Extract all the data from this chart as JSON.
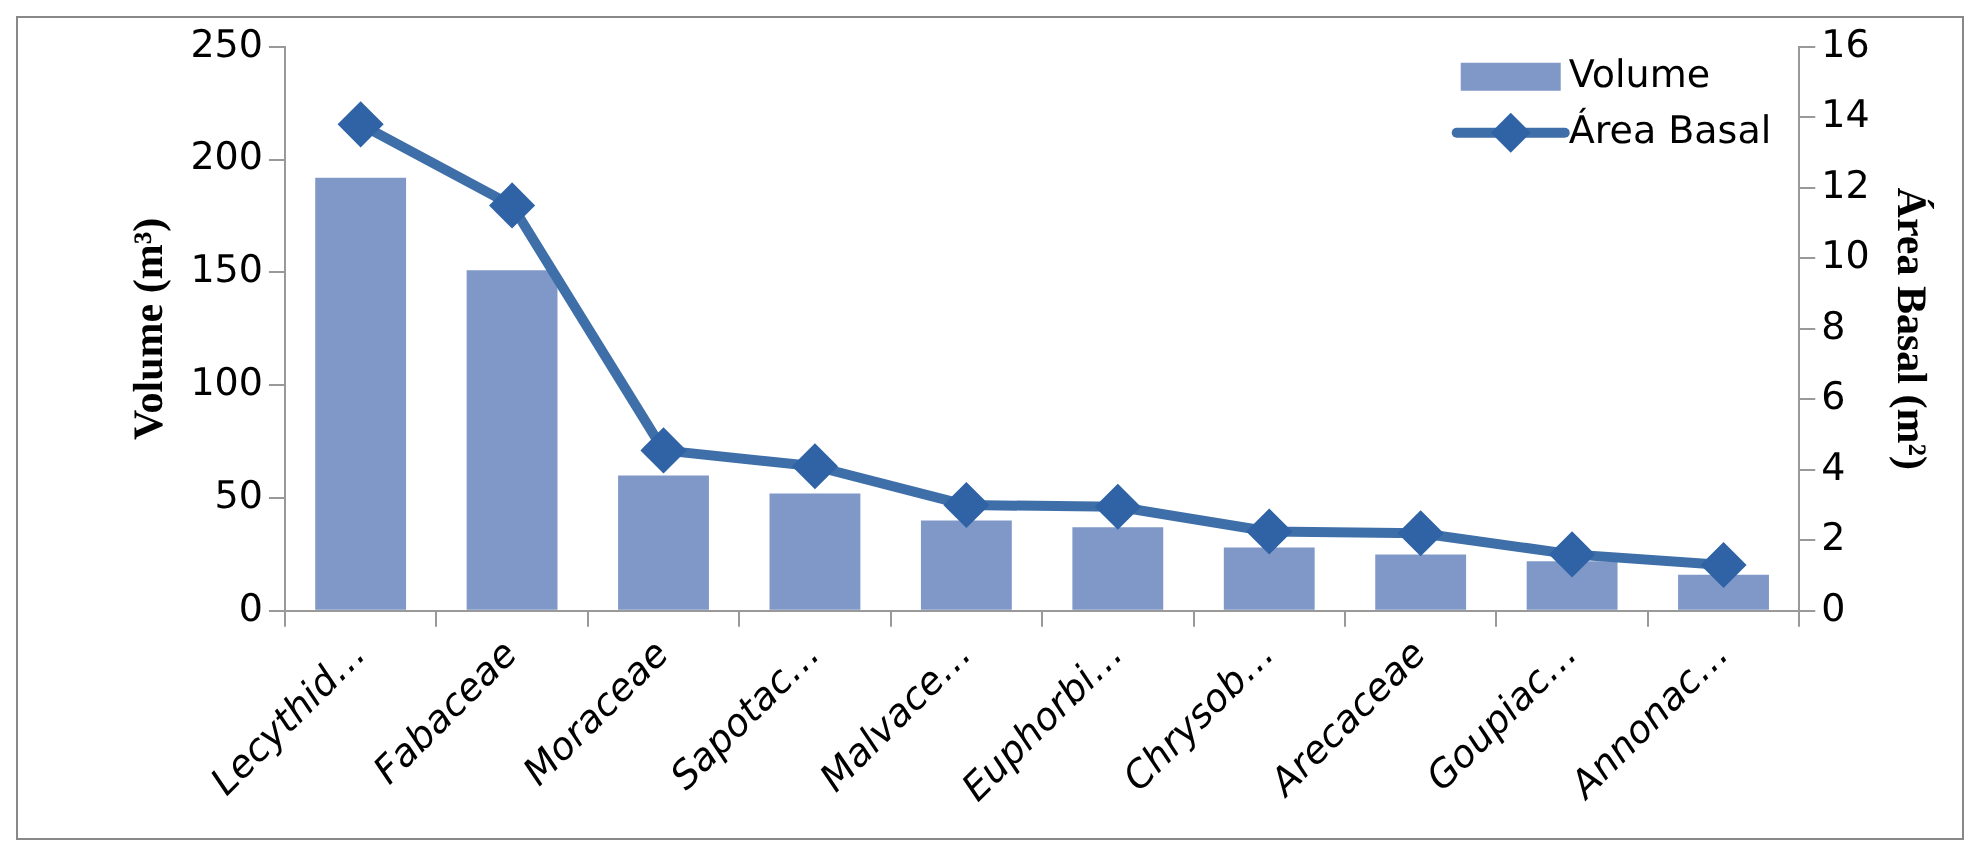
{
  "chart_data": {
    "type": "bar",
    "categories": [
      "Lecythid…",
      "Fabaceae",
      "Moraceae",
      "Sapotac…",
      "Malvace…",
      "Euphorbi…",
      "Chrysob…",
      "Arecaceae",
      "Goupiac…",
      "Annonac…"
    ],
    "ylabel": "Volume (m³)",
    "y2label": "Área Basal (m²)",
    "series": [
      {
        "name": "Volume",
        "color": "#7f98c8",
        "values": [
          192,
          151,
          60,
          52,
          40,
          37,
          28,
          25,
          22,
          16
        ]
      },
      {
        "name": "Área Basal",
        "type": "line",
        "axis": "y2",
        "color": "#3f6fa8",
        "marker": "diamond",
        "values": [
          13.8,
          11.5,
          4.55,
          4.1,
          3.0,
          2.95,
          2.25,
          2.2,
          1.6,
          1.3
        ]
      }
    ],
    "ylim": [
      0,
      250
    ],
    "yticks": [
      0,
      50,
      100,
      150,
      200,
      250
    ],
    "y2lim": [
      0,
      16
    ],
    "y2ticks": [
      0,
      2,
      4,
      6,
      8,
      10,
      12,
      14,
      16
    ],
    "grid": false,
    "legend": "top right"
  }
}
